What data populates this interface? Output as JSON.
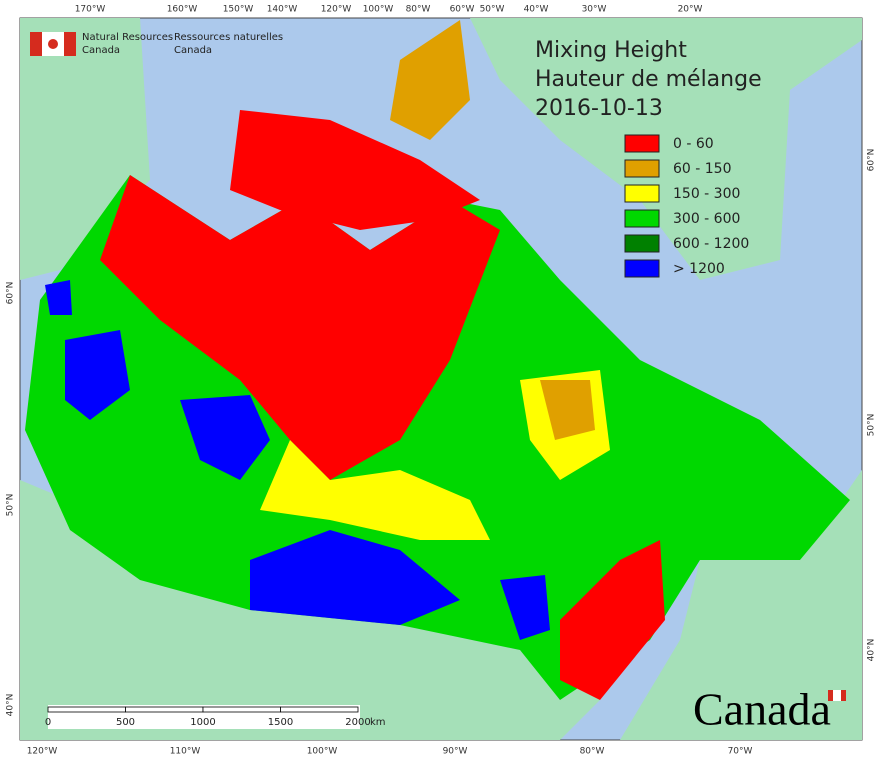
{
  "agency": {
    "en": [
      "Natural Resources",
      "Canada"
    ],
    "fr": [
      "Ressources naturelles",
      "Canada"
    ]
  },
  "title": [
    "Mixing Height",
    "Hauteur de mélange",
    "2016-10-13"
  ],
  "legend": [
    {
      "label": "0 - 60",
      "color": "#ff0000"
    },
    {
      "label": "60 - 150",
      "color": "#e0a000"
    },
    {
      "label": "150 - 300",
      "color": "#ffff00"
    },
    {
      "label": "300 - 600",
      "color": "#00d800"
    },
    {
      "label": "600 - 1200",
      "color": "#008000"
    },
    {
      "label": "> 1200",
      "color": "#0000ff"
    }
  ],
  "top_labels": [
    "170°W",
    "160°W",
    "150°W",
    "140°W",
    "120°W",
    "100°W",
    "80°W",
    "60°W",
    "50°W",
    "40°W",
    "30°W",
    "20°W"
  ],
  "bottom_labels": [
    "120°W",
    "110°W",
    "100°W",
    "90°W",
    "80°W",
    "70°W"
  ],
  "left_labels": [
    "60°N",
    "50°N",
    "40°N"
  ],
  "right_labels": [
    "60°N",
    "50°N",
    "40°N"
  ],
  "scale_bar": {
    "ticks": [
      0,
      500,
      1000,
      1500,
      2000
    ],
    "unit": "km"
  },
  "wordmark": "Canada"
}
